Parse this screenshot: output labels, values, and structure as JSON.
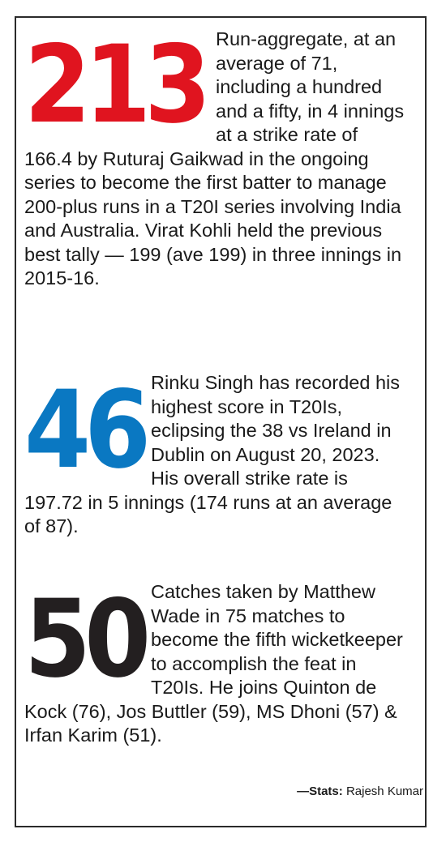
{
  "colors": {
    "stat1": "#e0141f",
    "stat2": "#0a78c2",
    "stat3": "#231f20",
    "border": "#2a2a2a"
  },
  "stats": [
    {
      "number": "213",
      "text": "Run-aggregate, at an average of 71, including a hundred and a fifty, in 4 innings at a strike rate of 166.4 by Ruturaj Gaikwad in the ongoing series to become the first batter to manage 200-plus runs in a T20I series involving India and Australia. Virat Kohli held the previous best tally — 199 (ave 199) in three innings in 2015-16."
    },
    {
      "number": "46",
      "text": "Rinku Singh has recorded his highest score in T20Is, eclipsing the 38 vs Ireland in Dublin on August 20, 2023. His overall strike rate is 197.72 in 5 innings (174 runs at an average of 87)."
    },
    {
      "number": "50",
      "text": "Catches taken by Matthew Wade in 75 matches to become the fifth wicketkeeper to accomplish the feat in T20Is. He joins Quinton de Kock (76), Jos Buttler (59), MS Dhoni (57) & Irfan Karim (51)."
    }
  ],
  "credit": {
    "label": "—Stats:",
    "name": "Rajesh Kumar"
  }
}
